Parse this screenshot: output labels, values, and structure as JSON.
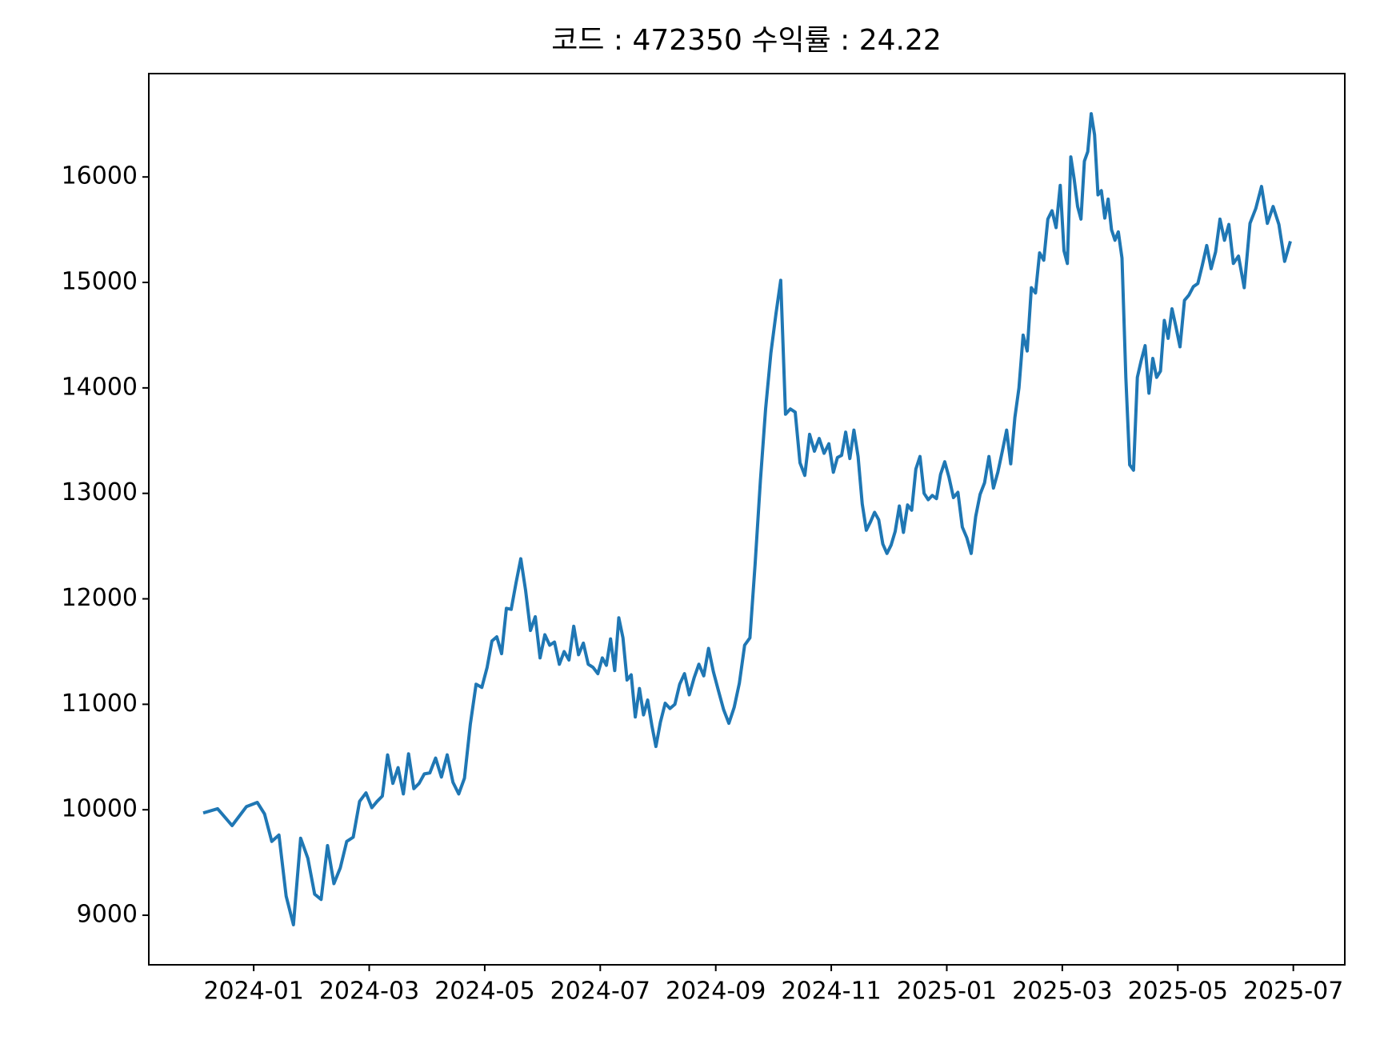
{
  "chart_data": {
    "type": "line",
    "title": "코드 : 472350 수익률 : 24.22",
    "color": "#1f77b4",
    "x": [
      "2023-12",
      "2023-12",
      "2023-12",
      "2023-12",
      "2024-01",
      "2024-01",
      "2024-01",
      "2024-01",
      "2024-01",
      "2024-01",
      "2024-01",
      "2024-01",
      "2024-02",
      "2024-02",
      "2024-02",
      "2024-02",
      "2024-02",
      "2024-02",
      "2024-02",
      "2024-02",
      "2024-02",
      "2024-03",
      "2024-03",
      "2024-03",
      "2024-03",
      "2024-03",
      "2024-03",
      "2024-03",
      "2024-03",
      "2024-03",
      "2024-03",
      "2024-03",
      "2024-04",
      "2024-04",
      "2024-04",
      "2024-04",
      "2024-04",
      "2024-04",
      "2024-04",
      "2024-04",
      "2024-04",
      "2024-04",
      "2024-05",
      "2024-05",
      "2024-05",
      "2024-05",
      "2024-05",
      "2024-05",
      "2024-05",
      "2024-05",
      "2024-05",
      "2024-05",
      "2024-05",
      "2024-05",
      "2024-06",
      "2024-06",
      "2024-06",
      "2024-06",
      "2024-06",
      "2024-06",
      "2024-06",
      "2024-06",
      "2024-06",
      "2024-06",
      "2024-06",
      "2024-06",
      "2024-07",
      "2024-07",
      "2024-07",
      "2024-07",
      "2024-07",
      "2024-07",
      "2024-07",
      "2024-07",
      "2024-07",
      "2024-07",
      "2024-07",
      "2024-07",
      "2024-07",
      "2024-07",
      "2024-08",
      "2024-08",
      "2024-08",
      "2024-08",
      "2024-08",
      "2024-08",
      "2024-08",
      "2024-08",
      "2024-08",
      "2024-08",
      "2024-08",
      "2024-08",
      "2024-09",
      "2024-09",
      "2024-09",
      "2024-09",
      "2024-09",
      "2024-09",
      "2024-09",
      "2024-09",
      "2024-09",
      "2024-09",
      "2024-09",
      "2024-10",
      "2024-10",
      "2024-10",
      "2024-10",
      "2024-10",
      "2024-10",
      "2024-10",
      "2024-10",
      "2024-10",
      "2024-10",
      "2024-10",
      "2024-10",
      "2024-11",
      "2024-11",
      "2024-11",
      "2024-11",
      "2024-11",
      "2024-11",
      "2024-11",
      "2024-11",
      "2024-11",
      "2024-11",
      "2024-11",
      "2024-11",
      "2024-11",
      "2024-11",
      "2024-12",
      "2024-12",
      "2024-12",
      "2024-12",
      "2024-12",
      "2024-12",
      "2024-12",
      "2024-12",
      "2024-12",
      "2024-12",
      "2024-12",
      "2024-12",
      "2024-12",
      "2024-12",
      "2025-01",
      "2025-01",
      "2025-01",
      "2025-01",
      "2025-01",
      "2025-01",
      "2025-01",
      "2025-01",
      "2025-01",
      "2025-01",
      "2025-01",
      "2025-01",
      "2025-01",
      "2025-02",
      "2025-02",
      "2025-02",
      "2025-02",
      "2025-02",
      "2025-02",
      "2025-02",
      "2025-02",
      "2025-02",
      "2025-02",
      "2025-02",
      "2025-02",
      "2025-02",
      "2025-02",
      "2025-03",
      "2025-03",
      "2025-03",
      "2025-03",
      "2025-03",
      "2025-03",
      "2025-03",
      "2025-03",
      "2025-03",
      "2025-03",
      "2025-03",
      "2025-03",
      "2025-03",
      "2025-03",
      "2025-03",
      "2025-03",
      "2025-03",
      "2025-04",
      "2025-04",
      "2025-04",
      "2025-04",
      "2025-04",
      "2025-04",
      "2025-04",
      "2025-04",
      "2025-04",
      "2025-04",
      "2025-04",
      "2025-04",
      "2025-04",
      "2025-04",
      "2025-04",
      "2025-05",
      "2025-05",
      "2025-05",
      "2025-05",
      "2025-05",
      "2025-05",
      "2025-05",
      "2025-05",
      "2025-05",
      "2025-05",
      "2025-05",
      "2025-05",
      "2025-05",
      "2025-06",
      "2025-06",
      "2025-06",
      "2025-06",
      "2025-06",
      "2025-06",
      "2025-06",
      "2025-06",
      "2025-06",
      "2025-06"
    ],
    "values": [
      9970,
      10010,
      9850,
      10030,
      10070,
      9960,
      9700,
      9760,
      9180,
      8910,
      9730,
      9540,
      9200,
      9150,
      9660,
      9300,
      9450,
      9700,
      9740,
      10080,
      10160,
      10020,
      10080,
      10130,
      10520,
      10250,
      10400,
      10150,
      10530,
      10200,
      10250,
      10340,
      10350,
      10490,
      10310,
      10520,
      10260,
      10150,
      10300,
      10810,
      11190,
      11160,
      11350,
      11600,
      11640,
      11480,
      11910,
      11900,
      12150,
      12380,
      12080,
      11700,
      11830,
      11440,
      11660,
      11560,
      11590,
      11380,
      11500,
      11420,
      11740,
      11470,
      11580,
      11380,
      11350,
      11290,
      11440,
      11370,
      11620,
      11320,
      11820,
      11630,
      11230,
      11280,
      10880,
      11150,
      10900,
      11040,
      10800,
      10600,
      10830,
      11010,
      10960,
      11000,
      11190,
      11290,
      11090,
      11250,
      11380,
      11270,
      11530,
      11310,
      11130,
      10950,
      10820,
      10970,
      11200,
      11560,
      11630,
      12330,
      13120,
      13800,
      14330,
      14700,
      15020,
      13750,
      13800,
      13770,
      13290,
      13170,
      13560,
      13400,
      13520,
      13380,
      13470,
      13200,
      13340,
      13360,
      13580,
      13330,
      13600,
      13350,
      12900,
      12650,
      12730,
      12820,
      12750,
      12520,
      12430,
      12510,
      12640,
      12880,
      12630,
      12890,
      12840,
      13230,
      13350,
      13000,
      12940,
      12980,
      12950,
      13180,
      13300,
      13150,
      12960,
      13010,
      12680,
      12580,
      12430,
      12780,
      12990,
      13100,
      13350,
      13050,
      13200,
      13400,
      13600,
      13280,
      13720,
      14000,
      14500,
      14350,
      14950,
      14900,
      15280,
      15210,
      15600,
      15680,
      15520,
      15920,
      15300,
      15180,
      16190,
      15980,
      15720,
      15600,
      16150,
      16240,
      16600,
      16400,
      15830,
      15870,
      15610,
      15790,
      15500,
      15400,
      15480,
      15230,
      14100,
      13270,
      13220,
      14100,
      14260,
      14400,
      13950,
      14280,
      14100,
      14160,
      14640,
      14470,
      14750,
      14580,
      14390,
      14830,
      14880,
      14960,
      14990,
      15160,
      15350,
      15130,
      15290,
      15600,
      15400,
      15550,
      15180,
      15250,
      14950,
      15560,
      15700,
      15910,
      15560,
      15720,
      15550,
      15200,
      15390
    ],
    "ylim": [
      8530,
      16980
    ],
    "yticks": [
      9000,
      10000,
      11000,
      12000,
      13000,
      14000,
      15000,
      16000
    ],
    "xticks": [
      "2024-01",
      "2024-03",
      "2024-05",
      "2024-07",
      "2024-09",
      "2024-11",
      "2025-01",
      "2025-03",
      "2025-05",
      "2025-07"
    ]
  }
}
